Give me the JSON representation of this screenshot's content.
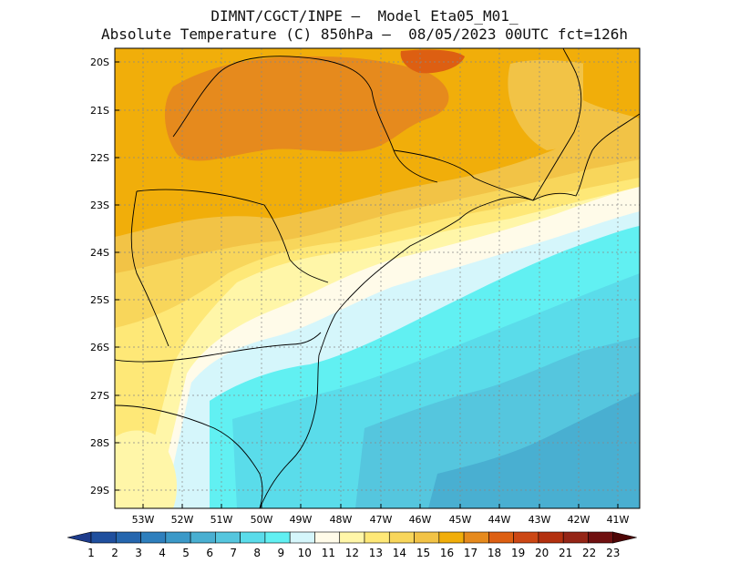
{
  "title_line1": "DIMNT/CGCT/INPE —  Model Eta05_M01_",
  "title_line2": "Absolute Temperature (C) 850hPa —  08/05/2023 00UTC fct=126h",
  "lat_labels": [
    "20S",
    "21S",
    "22S",
    "23S",
    "24S",
    "25S",
    "26S",
    "27S",
    "28S",
    "29S"
  ],
  "lon_labels": [
    "53W",
    "52W",
    "51W",
    "50W",
    "49W",
    "48W",
    "47W",
    "46W",
    "45W",
    "44W",
    "43W",
    "42W",
    "41W"
  ],
  "colorbar": {
    "labels": [
      "1",
      "2",
      "3",
      "4",
      "5",
      "6",
      "7",
      "8",
      "9",
      "10",
      "11",
      "12",
      "13",
      "14",
      "15",
      "16",
      "17",
      "18",
      "19",
      "20",
      "21",
      "22",
      "23"
    ],
    "colors": [
      "#1e3c8c",
      "#1f4f9e",
      "#2566ae",
      "#2e7fbd",
      "#3b99c8",
      "#49afd1",
      "#55c6de",
      "#5adcea",
      "#61f0f2",
      "#d5f6fb",
      "#fffbe9",
      "#fff6a8",
      "#fee877",
      "#f8d65b",
      "#f2c346",
      "#f1ae0a",
      "#e68a1d",
      "#dd5f12",
      "#cc4714",
      "#b3300f",
      "#952516",
      "#701010",
      "#4e0606"
    ]
  },
  "fields": {
    "colors": {
      "c10": "#d5f6fb",
      "c9": "#61f0f2",
      "c8": "#5adcea",
      "c7": "#55c6de",
      "c6": "#49afd1",
      "c11": "#fffbe9",
      "c12": "#fff6a8",
      "c13": "#fee877",
      "c14": "#f8d65b",
      "c15": "#f2c346",
      "c16": "#f1ae0a",
      "c17": "#e68a1d",
      "c18": "#dd5f12"
    }
  }
}
